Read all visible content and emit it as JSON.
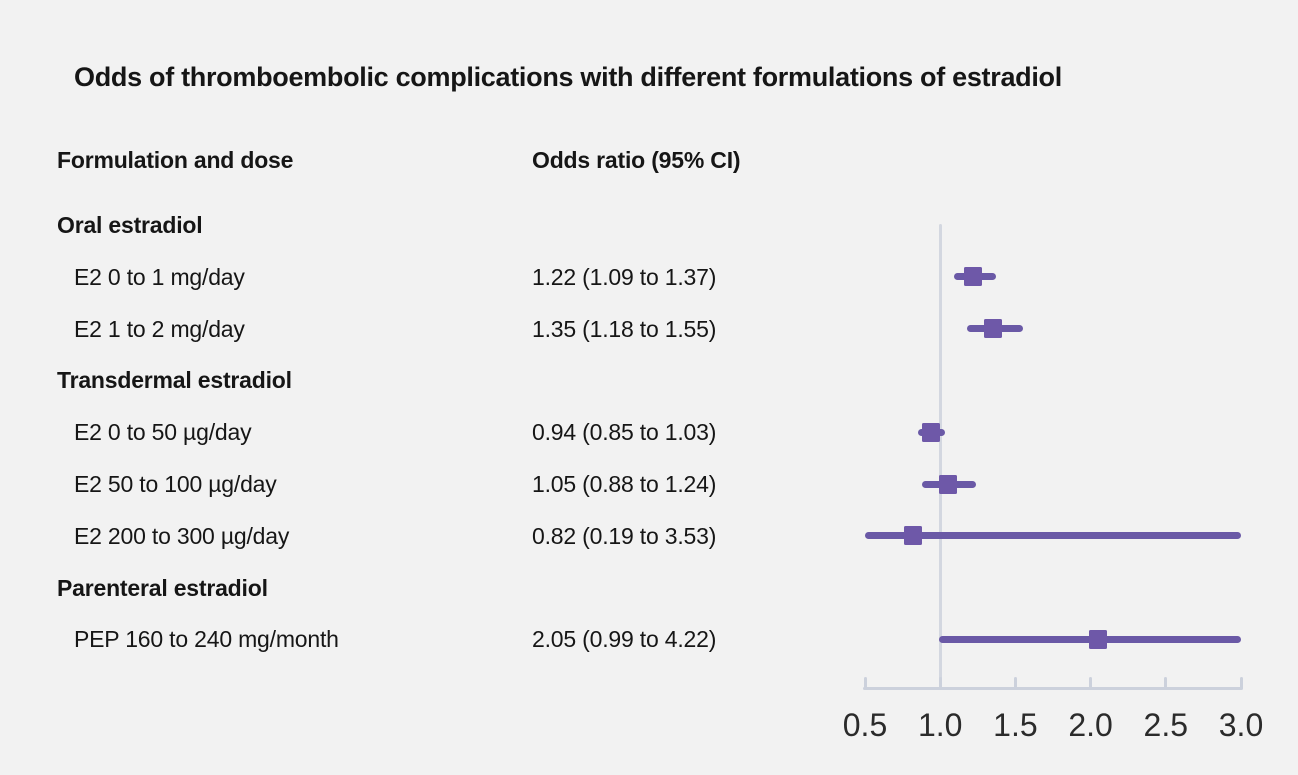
{
  "title": "Odds of thromboembolic complications with different formulations of estradiol",
  "columns": {
    "formulation_header": "Formulation and dose",
    "odds_ratio_header": "Odds ratio (95% CI)"
  },
  "colors": {
    "background": "#f2f2f2",
    "text": "#161616",
    "axis_text": "#2b2b2b",
    "marker_purple": "#6e58a8",
    "ci_line_purple": "#6a59a6",
    "axis_gray": "#ccd1dc",
    "ref_line_gray": "#d3d7e0"
  },
  "chart_data": {
    "type": "forest-plot",
    "title": "Odds of thromboembolic complications with different formulations of estradiol",
    "xlabel": "",
    "ylabel": "",
    "legend": "none",
    "grid": "off",
    "x_axis": {
      "xmin": 0.5,
      "xmax": 3.0,
      "reference_value": 1.0,
      "tick_values": [
        0.5,
        1.0,
        1.5,
        2.0,
        2.5,
        3.0
      ],
      "tick_labels": [
        "0.5",
        "1.0",
        "1.5",
        "2.0",
        "2.5",
        "3.0"
      ]
    },
    "rows": [
      {
        "type": "group",
        "label": "Oral estradiol"
      },
      {
        "type": "item",
        "label": "E2 0 to 1 mg/day",
        "value_text": "1.22 (1.09 to 1.37)",
        "or": 1.22,
        "ci_low": 1.09,
        "ci_high": 1.37
      },
      {
        "type": "item",
        "label": "E2 1 to 2 mg/day",
        "value_text": "1.35 (1.18 to 1.55)",
        "or": 1.35,
        "ci_low": 1.18,
        "ci_high": 1.55
      },
      {
        "type": "group",
        "label": "Transdermal estradiol"
      },
      {
        "type": "item",
        "label": "E2 0 to 50 µg/day",
        "value_text": "0.94 (0.85 to 1.03)",
        "or": 0.94,
        "ci_low": 0.85,
        "ci_high": 1.03
      },
      {
        "type": "item",
        "label": "E2 50 to 100 µg/day",
        "value_text": "1.05 (0.88 to 1.24)",
        "or": 1.05,
        "ci_low": 0.88,
        "ci_high": 1.24
      },
      {
        "type": "item",
        "label": "E2 200 to 300 µg/day",
        "value_text": "0.82 (0.19 to 3.53)",
        "or": 0.82,
        "ci_low": 0.19,
        "ci_high": 3.53
      },
      {
        "type": "group",
        "label": "Parenteral estradiol"
      },
      {
        "type": "item",
        "label": "PEP 160 to 240 mg/month",
        "value_text": "2.05 (0.99 to 4.22)",
        "or": 2.05,
        "ci_low": 0.99,
        "ci_high": 4.22
      }
    ]
  }
}
